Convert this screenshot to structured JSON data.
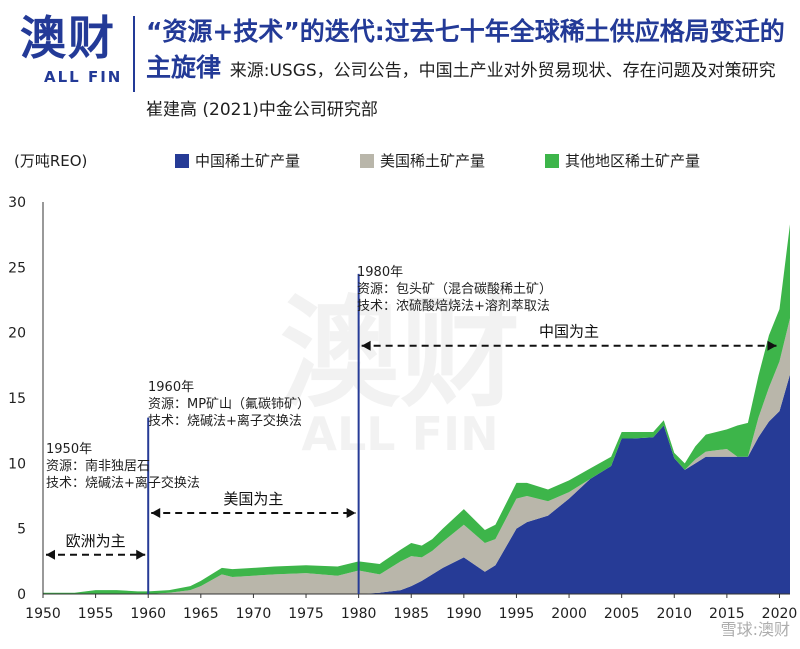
{
  "header": {
    "logo": "澳财",
    "logo_sub": "ALL FIN",
    "title": "“资源+技术”的迭代:过去七十年全球稀土供应格局变迁的主旋律",
    "source": "来源:USGS，公司公告，中国土产业对外贸易现状、存在问题及对策研究 崔建高 (2021)中金公司研究部"
  },
  "footer_watermark": "雪球:澳财",
  "colors": {
    "china": "#263b96",
    "usa": "#b9b6aa",
    "other": "#3db54a",
    "brand": "#233a97"
  },
  "chart_data": {
    "type": "area",
    "stacked": true,
    "unit_label": "(万吨REO)",
    "x": [
      1950,
      1953,
      1955,
      1957,
      1959,
      1960,
      1962,
      1964,
      1965,
      1967,
      1968,
      1970,
      1972,
      1975,
      1978,
      1980,
      1982,
      1984,
      1985,
      1986,
      1987,
      1988,
      1990,
      1992,
      1993,
      1995,
      1996,
      1998,
      2000,
      2002,
      2004,
      2005,
      2006,
      2008,
      2009,
      2010,
      2011,
      2012,
      2013,
      2014,
      2015,
      2016,
      2017,
      2018,
      2019,
      2020,
      2021
    ],
    "series": [
      {
        "name": "中国稀土矿产量",
        "values": [
          0,
          0,
          0,
          0,
          0,
          0,
          0,
          0,
          0,
          0,
          0,
          0,
          0,
          0,
          0,
          0,
          0.1,
          0.3,
          0.6,
          1.0,
          1.5,
          2.0,
          2.8,
          1.7,
          2.2,
          5.0,
          5.5,
          6.0,
          7.3,
          8.8,
          9.8,
          11.9,
          11.9,
          12.0,
          12.9,
          10.4,
          9.5,
          10.0,
          10.5,
          10.5,
          10.5,
          10.5,
          10.5,
          12.0,
          13.2,
          14.0,
          16.8
        ]
      },
      {
        "name": "美国稀土矿产量",
        "values": [
          0,
          0,
          0,
          0,
          0,
          0,
          0.1,
          0.3,
          0.6,
          1.5,
          1.3,
          1.4,
          1.5,
          1.6,
          1.4,
          1.8,
          1.4,
          2.2,
          2.3,
          1.8,
          1.8,
          2.0,
          2.5,
          2.2,
          2.0,
          2.3,
          2.0,
          1.1,
          0.5,
          0,
          0,
          0,
          0,
          0,
          0,
          0,
          0,
          0.3,
          0.4,
          0.5,
          0.6,
          0,
          0,
          1.5,
          2.6,
          3.8,
          4.3
        ]
      },
      {
        "name": "其他地区稀土矿产量",
        "values": [
          0.1,
          0.1,
          0.3,
          0.3,
          0.2,
          0.2,
          0.2,
          0.3,
          0.4,
          0.5,
          0.6,
          0.6,
          0.6,
          0.6,
          0.7,
          0.7,
          0.8,
          0.9,
          1.0,
          0.9,
          0.9,
          1.0,
          1.2,
          1.0,
          1.1,
          1.2,
          1.0,
          0.9,
          0.9,
          0.8,
          0.7,
          0.5,
          0.5,
          0.4,
          0.4,
          0.4,
          0.5,
          1.0,
          1.3,
          1.4,
          1.5,
          2.4,
          2.6,
          3.2,
          4.0,
          4.0,
          7.2
        ]
      }
    ],
    "xlim": [
      1950,
      2021
    ],
    "ylim": [
      0,
      30
    ],
    "x_ticks": [
      1950,
      1955,
      1960,
      1965,
      1970,
      1975,
      1980,
      1985,
      1990,
      1995,
      2000,
      2005,
      2010,
      2015,
      2020
    ],
    "y_ticks": [
      0,
      5,
      10,
      15,
      20,
      25,
      30
    ],
    "legend_position": "top",
    "grid": false,
    "annotations": [
      {
        "year": "1950年",
        "resource": "资源：南非独居石",
        "tech": "技术：烧碱法+离子交换法"
      },
      {
        "year": "1960年",
        "resource": "资源：MP矿山（氟碳铈矿）",
        "tech": "技术：烧碱法+离子交换法"
      },
      {
        "year": "1980年",
        "resource": "资源：包头矿（混合碳酸稀土矿）",
        "tech": "技术：浓硫酸焙烧法+溶剂萃取法"
      }
    ],
    "eras": [
      {
        "label": "欧洲为主",
        "from": 1950,
        "to": 1960,
        "y": 3.0
      },
      {
        "label": "美国为主",
        "from": 1960,
        "to": 1980,
        "y": 6.2
      },
      {
        "label": "中国为主",
        "from": 1980,
        "to": 2020,
        "y": 19.0
      }
    ],
    "era_lines": [
      1960,
      1980
    ]
  }
}
